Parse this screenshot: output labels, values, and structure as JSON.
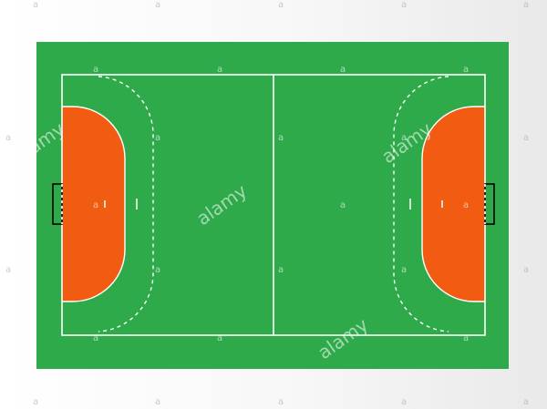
{
  "image": {
    "subject": "handball court top view",
    "colors": {
      "background": "#f4f4f4",
      "court_green": "#2eaa4a",
      "goal_area_orange": "#f25c12",
      "lines": "#ffffff"
    }
  },
  "watermark": {
    "brand": "alamy",
    "glyph": "a"
  }
}
